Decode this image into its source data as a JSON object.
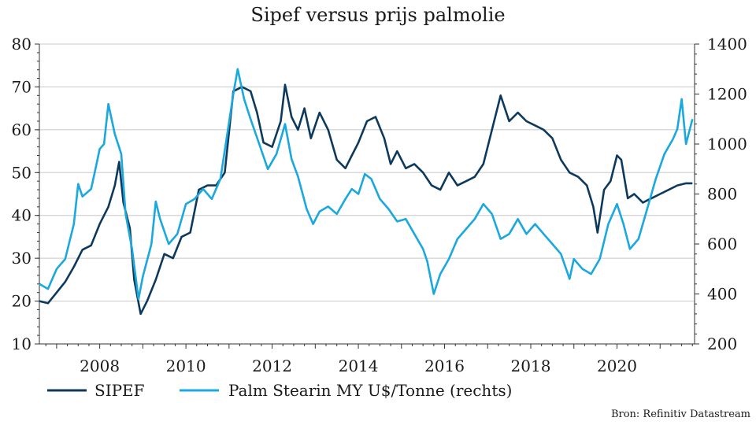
{
  "chart_data": {
    "type": "line",
    "title": "Sipef versus prijs palmolie",
    "source": "Bron: Refinitiv Datastream",
    "grid": true,
    "legend_position": "bottom-left",
    "x_range": [
      2006.6,
      2021.8
    ],
    "x_ticks": [
      "2008",
      "2010",
      "2012",
      "2014",
      "2016",
      "2018",
      "2020"
    ],
    "y_left": {
      "range": [
        10,
        80
      ],
      "ticks": [
        "10",
        "20",
        "30",
        "40",
        "50",
        "60",
        "70",
        "80"
      ]
    },
    "y_right": {
      "range": [
        200,
        1400
      ],
      "ticks": [
        "200",
        "400",
        "600",
        "800",
        "1000",
        "1200",
        "1400"
      ]
    },
    "series": [
      {
        "name": "SIPEF",
        "axis": "left",
        "color": "#0d3a5c",
        "points": [
          [
            2006.6,
            20
          ],
          [
            2006.8,
            19.5
          ],
          [
            2007.0,
            22
          ],
          [
            2007.2,
            24.5
          ],
          [
            2007.4,
            28
          ],
          [
            2007.6,
            32
          ],
          [
            2007.8,
            33
          ],
          [
            2008.0,
            38
          ],
          [
            2008.2,
            42
          ],
          [
            2008.35,
            47
          ],
          [
            2008.45,
            52.5
          ],
          [
            2008.55,
            43
          ],
          [
            2008.7,
            37
          ],
          [
            2008.8,
            25
          ],
          [
            2008.95,
            17
          ],
          [
            2009.1,
            20
          ],
          [
            2009.3,
            25
          ],
          [
            2009.5,
            31
          ],
          [
            2009.7,
            30
          ],
          [
            2009.9,
            35
          ],
          [
            2010.1,
            36
          ],
          [
            2010.3,
            46
          ],
          [
            2010.5,
            47
          ],
          [
            2010.7,
            47
          ],
          [
            2010.9,
            50
          ],
          [
            2011.1,
            69
          ],
          [
            2011.3,
            70
          ],
          [
            2011.5,
            69
          ],
          [
            2011.65,
            64
          ],
          [
            2011.8,
            57
          ],
          [
            2012.0,
            56
          ],
          [
            2012.2,
            62
          ],
          [
            2012.3,
            70.5
          ],
          [
            2012.45,
            63
          ],
          [
            2012.6,
            60
          ],
          [
            2012.75,
            65
          ],
          [
            2012.9,
            58
          ],
          [
            2013.1,
            64
          ],
          [
            2013.3,
            60
          ],
          [
            2013.5,
            53
          ],
          [
            2013.7,
            51
          ],
          [
            2013.85,
            54
          ],
          [
            2014.0,
            57
          ],
          [
            2014.2,
            62
          ],
          [
            2014.4,
            63
          ],
          [
            2014.6,
            58
          ],
          [
            2014.75,
            52
          ],
          [
            2014.9,
            55
          ],
          [
            2015.1,
            51
          ],
          [
            2015.3,
            52
          ],
          [
            2015.5,
            50
          ],
          [
            2015.7,
            47
          ],
          [
            2015.9,
            46
          ],
          [
            2016.1,
            50
          ],
          [
            2016.3,
            47
          ],
          [
            2016.5,
            48
          ],
          [
            2016.7,
            49
          ],
          [
            2016.9,
            52
          ],
          [
            2017.1,
            60
          ],
          [
            2017.3,
            68
          ],
          [
            2017.5,
            62
          ],
          [
            2017.7,
            64
          ],
          [
            2017.9,
            62
          ],
          [
            2018.1,
            61
          ],
          [
            2018.3,
            60
          ],
          [
            2018.5,
            58
          ],
          [
            2018.7,
            53
          ],
          [
            2018.9,
            50
          ],
          [
            2019.1,
            49
          ],
          [
            2019.3,
            47
          ],
          [
            2019.45,
            42
          ],
          [
            2019.55,
            36
          ],
          [
            2019.7,
            46
          ],
          [
            2019.85,
            48
          ],
          [
            2020.0,
            54
          ],
          [
            2020.1,
            53
          ],
          [
            2020.25,
            44
          ],
          [
            2020.4,
            45
          ],
          [
            2020.6,
            43
          ],
          [
            2020.8,
            44
          ],
          [
            2021.0,
            45
          ],
          [
            2021.2,
            46
          ],
          [
            2021.4,
            47
          ],
          [
            2021.6,
            47.5
          ],
          [
            2021.75,
            47.5
          ]
        ]
      },
      {
        "name": "Palm Stearin MY U$/Tonne (rechts)",
        "axis": "right",
        "color": "#1ba8dc",
        "points": [
          [
            2006.6,
            440
          ],
          [
            2006.8,
            420
          ],
          [
            2007.0,
            500
          ],
          [
            2007.2,
            540
          ],
          [
            2007.4,
            680
          ],
          [
            2007.5,
            840
          ],
          [
            2007.6,
            790
          ],
          [
            2007.8,
            820
          ],
          [
            2007.9,
            900
          ],
          [
            2008.0,
            980
          ],
          [
            2008.1,
            1000
          ],
          [
            2008.2,
            1160
          ],
          [
            2008.35,
            1040
          ],
          [
            2008.5,
            960
          ],
          [
            2008.6,
            720
          ],
          [
            2008.75,
            580
          ],
          [
            2008.9,
            380
          ],
          [
            2009.0,
            470
          ],
          [
            2009.2,
            600
          ],
          [
            2009.3,
            770
          ],
          [
            2009.4,
            700
          ],
          [
            2009.6,
            600
          ],
          [
            2009.8,
            640
          ],
          [
            2010.0,
            760
          ],
          [
            2010.2,
            780
          ],
          [
            2010.4,
            820
          ],
          [
            2010.6,
            780
          ],
          [
            2010.8,
            860
          ],
          [
            2010.95,
            1030
          ],
          [
            2011.1,
            1200
          ],
          [
            2011.2,
            1300
          ],
          [
            2011.35,
            1180
          ],
          [
            2011.5,
            1100
          ],
          [
            2011.7,
            1000
          ],
          [
            2011.9,
            900
          ],
          [
            2012.1,
            960
          ],
          [
            2012.3,
            1080
          ],
          [
            2012.45,
            940
          ],
          [
            2012.6,
            870
          ],
          [
            2012.8,
            740
          ],
          [
            2012.95,
            680
          ],
          [
            2013.1,
            730
          ],
          [
            2013.3,
            750
          ],
          [
            2013.5,
            720
          ],
          [
            2013.7,
            780
          ],
          [
            2013.85,
            820
          ],
          [
            2014.0,
            800
          ],
          [
            2014.15,
            880
          ],
          [
            2014.3,
            860
          ],
          [
            2014.5,
            780
          ],
          [
            2014.7,
            740
          ],
          [
            2014.9,
            690
          ],
          [
            2015.1,
            700
          ],
          [
            2015.3,
            640
          ],
          [
            2015.5,
            580
          ],
          [
            2015.6,
            530
          ],
          [
            2015.75,
            400
          ],
          [
            2015.9,
            480
          ],
          [
            2016.1,
            540
          ],
          [
            2016.3,
            620
          ],
          [
            2016.5,
            660
          ],
          [
            2016.7,
            700
          ],
          [
            2016.9,
            760
          ],
          [
            2017.1,
            720
          ],
          [
            2017.3,
            620
          ],
          [
            2017.5,
            640
          ],
          [
            2017.7,
            700
          ],
          [
            2017.9,
            640
          ],
          [
            2018.1,
            680
          ],
          [
            2018.3,
            640
          ],
          [
            2018.5,
            600
          ],
          [
            2018.7,
            560
          ],
          [
            2018.9,
            460
          ],
          [
            2019.0,
            540
          ],
          [
            2019.2,
            500
          ],
          [
            2019.4,
            480
          ],
          [
            2019.6,
            540
          ],
          [
            2019.8,
            680
          ],
          [
            2020.0,
            760
          ],
          [
            2020.15,
            680
          ],
          [
            2020.3,
            580
          ],
          [
            2020.5,
            620
          ],
          [
            2020.7,
            740
          ],
          [
            2020.9,
            860
          ],
          [
            2021.1,
            960
          ],
          [
            2021.3,
            1020
          ],
          [
            2021.4,
            1060
          ],
          [
            2021.5,
            1180
          ],
          [
            2021.6,
            1000
          ],
          [
            2021.75,
            1100
          ]
        ]
      }
    ]
  }
}
